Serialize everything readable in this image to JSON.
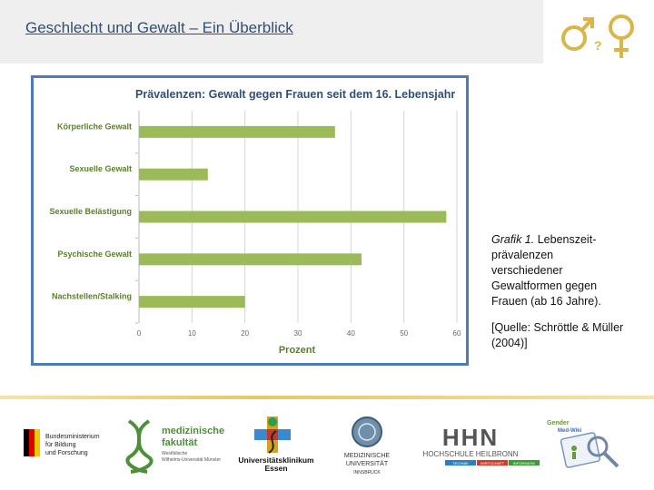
{
  "header": {
    "title": "Geschlecht und Gewalt – Ein Überblick"
  },
  "colors": {
    "bar": "#9bbb59",
    "axis_text": "#5a7f2b",
    "title": "#2f4f77",
    "chart_border": "#4e7bb6"
  },
  "chart_data": {
    "type": "bar",
    "orientation": "horizontal",
    "title": "Prävalenzen: Gewalt gegen Frauen seit dem 16. Lebensjahr",
    "categories": [
      "Körperliche Gewalt",
      "Sexuelle Gewalt",
      "Sexuelle Belästigung",
      "Psychische Gewalt",
      "Nachstellen/Stalking"
    ],
    "values": [
      37,
      13,
      58,
      42,
      20
    ],
    "xlabel": "Prozent",
    "ylabel": "",
    "xlim": [
      0,
      60
    ],
    "xticks": [
      "0",
      "10",
      "20",
      "30",
      "40",
      "50",
      "60"
    ],
    "grid": "vertical"
  },
  "caption": {
    "figure_label": "Grafik 1.",
    "text": " Lebenszeit­prävalenzen verschiedener Gewaltformen gegen Frauen (ab 16 Jahre).",
    "source": "[Quelle: Schröttle & Müller (2004)]"
  },
  "logos": {
    "bmbf": {
      "line1": "Bundesministerium",
      "line2": "für Bildung",
      "line3": "und Forschung"
    },
    "medfak": {
      "line1": "medizinische",
      "line2": "fakultät",
      "sub1": "Westfälische",
      "sub2": "Wilhelms-Universität Münster"
    },
    "uk_essen": {
      "line1": "Universitätsklinikum",
      "line2": "Essen"
    },
    "mui": {
      "line1": "MEDIZINISCHE",
      "line2": "UNIVERSITÄT",
      "line3": "INNSBRUCK"
    },
    "hhn": {
      "mark": "HHN",
      "name": "HOCHSCHULE HEILBRONN",
      "tags": [
        "TECHNIK",
        "WIRTSCHAFT",
        "INFORMATIK"
      ]
    },
    "gender_med": {
      "line1": "Gender",
      "line2": "Med-Wiki"
    }
  }
}
